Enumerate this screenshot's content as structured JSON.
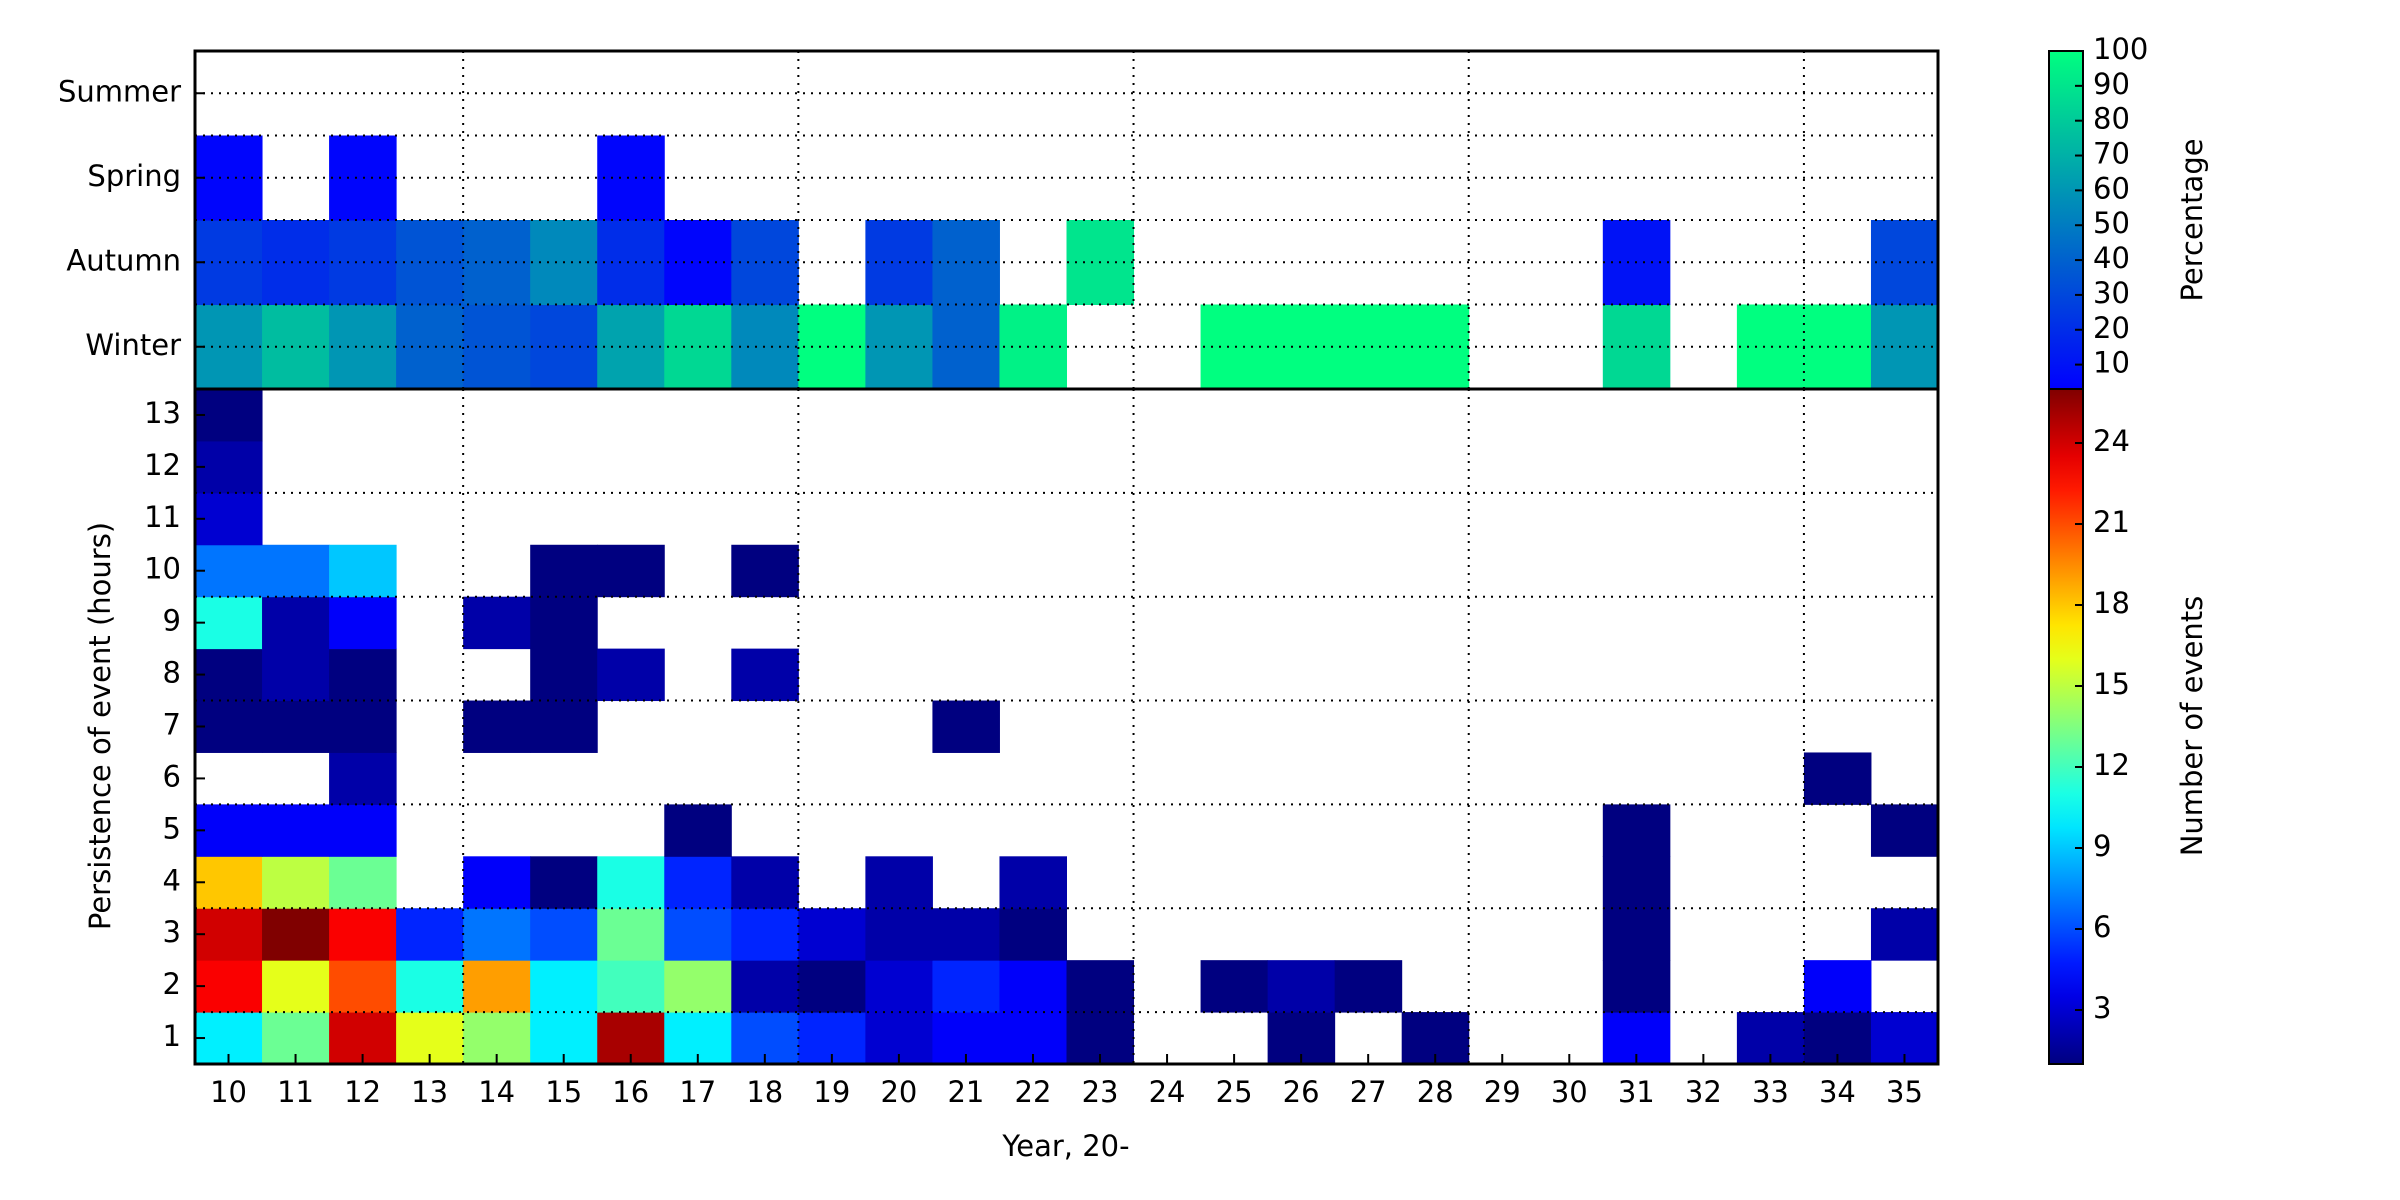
{
  "chart_data": [
    {
      "type": "heatmap",
      "colormap": "winter",
      "colorbar_label": "Percentage",
      "rows": [
        "Winter",
        "Autumn",
        "Spring",
        "Summer"
      ],
      "z": [
        [
          60,
          75,
          60,
          40,
          35,
          30,
          65,
          85,
          55,
          100,
          60,
          40,
          95,
          null,
          null,
          100,
          100,
          100,
          100,
          null,
          null,
          85,
          null,
          100,
          100,
          60
        ],
        [
          25,
          20,
          25,
          35,
          40,
          55,
          20,
          5,
          30,
          null,
          25,
          40,
          null,
          90,
          null,
          null,
          null,
          null,
          null,
          null,
          null,
          10,
          null,
          null,
          null,
          30
        ],
        [
          5,
          null,
          5,
          null,
          null,
          null,
          5,
          null,
          null,
          null,
          null,
          null,
          null,
          null,
          null,
          null,
          null,
          null,
          null,
          null,
          null,
          null,
          null,
          null,
          null,
          null
        ],
        [
          null,
          null,
          null,
          null,
          null,
          null,
          null,
          null,
          null,
          null,
          null,
          null,
          null,
          null,
          null,
          null,
          null,
          null,
          null,
          null,
          null,
          null,
          null,
          null,
          null,
          null
        ]
      ],
      "zlim": [
        3,
        100
      ],
      "zticks": [
        10,
        20,
        30,
        40,
        50,
        60,
        70,
        80,
        90,
        100
      ]
    },
    {
      "type": "heatmap",
      "colormap": "jet",
      "colorbar_label": "Number of events",
      "xlabel": "Year, 20-",
      "ylabel": "Persistence of event (hours)",
      "categories": [
        "10",
        "11",
        "12",
        "13",
        "14",
        "15",
        "16",
        "17",
        "18",
        "19",
        "20",
        "21",
        "22",
        "23",
        "24",
        "25",
        "26",
        "27",
        "28",
        "29",
        "30",
        "31",
        "32",
        "33",
        "34",
        "35"
      ],
      "rows": [
        1,
        2,
        3,
        4,
        5,
        6,
        7,
        8,
        9,
        10,
        11,
        12,
        13
      ],
      "z": [
        [
          10,
          13,
          24,
          16,
          14,
          10,
          25,
          10,
          6,
          5,
          3,
          4,
          4,
          1,
          null,
          null,
          1,
          null,
          1,
          null,
          null,
          4,
          null,
          2,
          1,
          3
        ],
        [
          23,
          16,
          21,
          11,
          19,
          10,
          12,
          14,
          2,
          1,
          3,
          5,
          4,
          1,
          null,
          1,
          2,
          1,
          null,
          null,
          null,
          1,
          null,
          null,
          4,
          null
        ],
        [
          24,
          26,
          23,
          5,
          7,
          6,
          13,
          6,
          5,
          3,
          2,
          2,
          1,
          null,
          null,
          null,
          null,
          null,
          null,
          null,
          null,
          1,
          null,
          null,
          null,
          2
        ],
        [
          18,
          15,
          13,
          null,
          4,
          1,
          11,
          5,
          2,
          null,
          2,
          null,
          2,
          null,
          null,
          null,
          null,
          null,
          null,
          null,
          null,
          1,
          null,
          null,
          null,
          null
        ],
        [
          4,
          4,
          4,
          null,
          null,
          null,
          null,
          1,
          null,
          null,
          null,
          null,
          null,
          null,
          null,
          null,
          null,
          null,
          null,
          null,
          null,
          1,
          null,
          null,
          null,
          1
        ],
        [
          null,
          null,
          2,
          null,
          null,
          null,
          null,
          null,
          null,
          null,
          null,
          null,
          null,
          null,
          null,
          null,
          null,
          null,
          null,
          null,
          null,
          null,
          null,
          null,
          1,
          null
        ],
        [
          1,
          1,
          1,
          null,
          1,
          1,
          null,
          null,
          null,
          null,
          null,
          1,
          null,
          null,
          null,
          null,
          null,
          null,
          null,
          null,
          null,
          null,
          null,
          null,
          null,
          null
        ],
        [
          1,
          2,
          1,
          null,
          null,
          1,
          2,
          null,
          2,
          null,
          null,
          null,
          null,
          null,
          null,
          null,
          null,
          null,
          null,
          null,
          null,
          null,
          null,
          null,
          null,
          null
        ],
        [
          11,
          2,
          4,
          null,
          2,
          1,
          null,
          null,
          null,
          null,
          null,
          null,
          null,
          null,
          null,
          null,
          null,
          null,
          null,
          null,
          null,
          null,
          null,
          null,
          null,
          null
        ],
        [
          7,
          7,
          9,
          null,
          null,
          1,
          1,
          null,
          1,
          null,
          null,
          null,
          null,
          null,
          null,
          null,
          null,
          null,
          null,
          null,
          null,
          null,
          null,
          null,
          null,
          null
        ],
        [
          3,
          null,
          null,
          null,
          null,
          null,
          null,
          null,
          null,
          null,
          null,
          null,
          null,
          null,
          null,
          null,
          null,
          null,
          null,
          null,
          null,
          null,
          null,
          null,
          null,
          null
        ],
        [
          2,
          null,
          null,
          null,
          null,
          null,
          null,
          null,
          null,
          null,
          null,
          null,
          null,
          null,
          null,
          null,
          null,
          null,
          null,
          null,
          null,
          null,
          null,
          null,
          null,
          null
        ],
        [
          1,
          null,
          null,
          null,
          null,
          null,
          null,
          null,
          null,
          null,
          null,
          null,
          null,
          null,
          null,
          null,
          null,
          null,
          null,
          null,
          null,
          null,
          null,
          null,
          null,
          null
        ]
      ],
      "zlim": [
        1,
        26
      ],
      "zticks": [
        3,
        6,
        9,
        12,
        15,
        18,
        21,
        24
      ]
    }
  ]
}
